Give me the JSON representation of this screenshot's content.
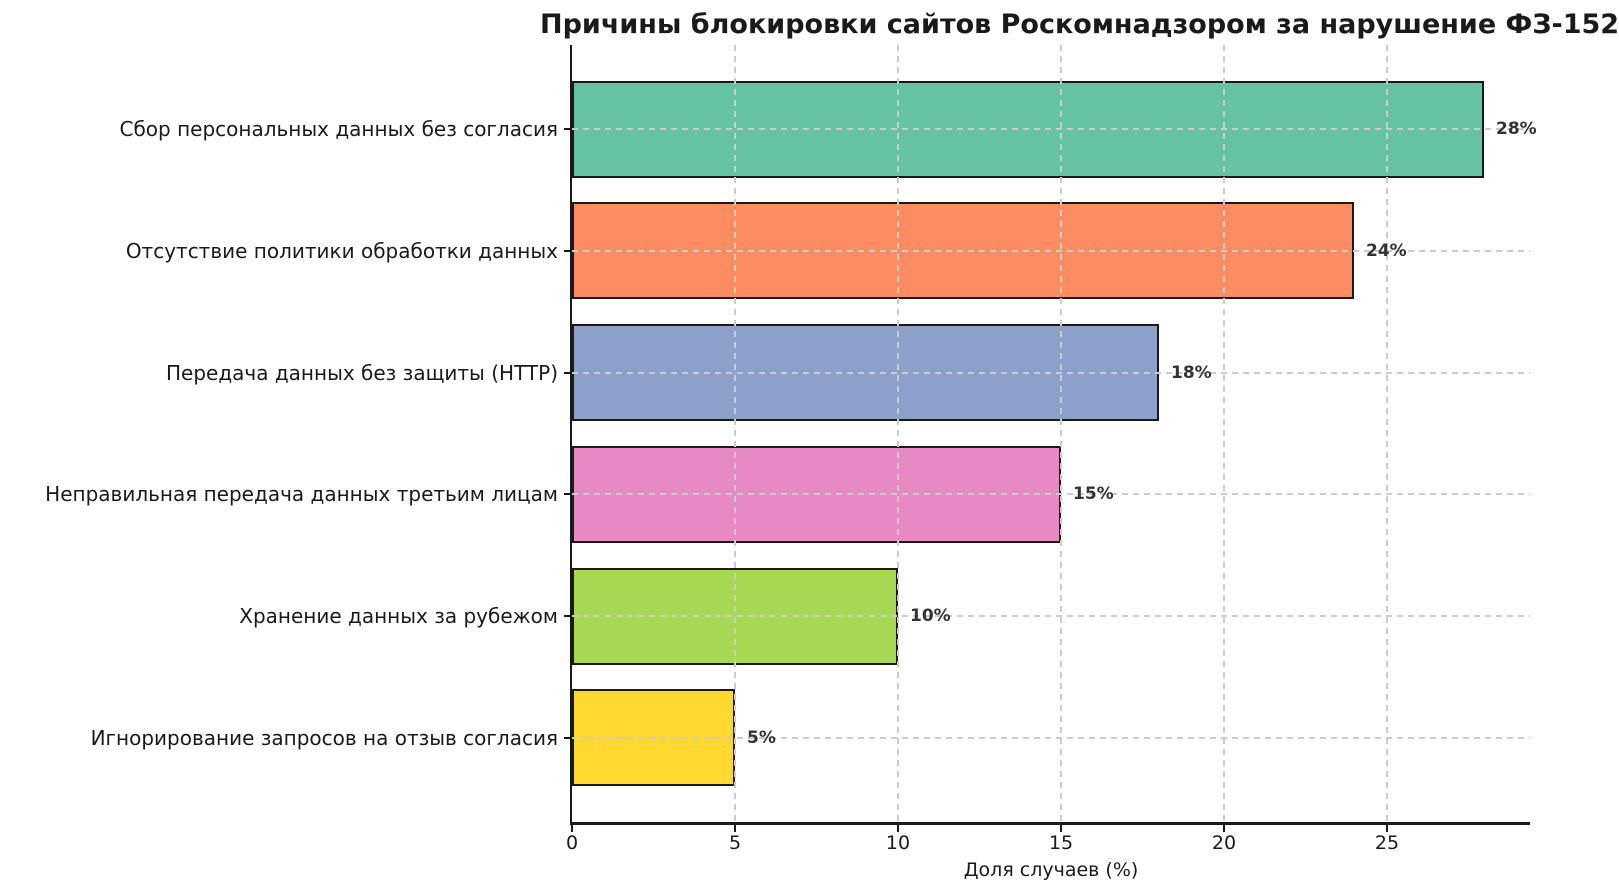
{
  "chart_data": {
    "type": "bar",
    "orientation": "horizontal",
    "title": "Причины блокировки сайтов Роскомнадзором за нарушение ФЗ-152",
    "xlabel": "Доля случаев (%)",
    "ylabel": "",
    "categories": [
      "Сбор персональных данных без согласия",
      "Отсутствие политики обработки данных",
      "Передача данных без защиты (HTTP)",
      "Неправильная передача данных третьим лицам",
      "Хранение данных за рубежом",
      "Игнорирование запросов на отзыв согласия"
    ],
    "values": [
      28,
      24,
      18,
      15,
      10,
      5
    ],
    "value_labels": [
      "28%",
      "24%",
      "18%",
      "15%",
      "10%",
      "5%"
    ],
    "bar_colors": [
      "#66c2a5",
      "#fc8d62",
      "#8da0cb",
      "#e78ac3",
      "#a6d854",
      "#ffd92f"
    ],
    "bar_edge_color": "#1a1a1a",
    "xticks": [
      0,
      5,
      10,
      15,
      20,
      25
    ],
    "xlim": [
      0,
      29.4
    ],
    "grid": {
      "show": true,
      "style": "dashed",
      "color": "#cccccc",
      "above_bars": true
    },
    "legend_position": "none",
    "background_color": "#ffffff",
    "spine_color": "#1a1a1a",
    "value_label_color": "#333333"
  }
}
